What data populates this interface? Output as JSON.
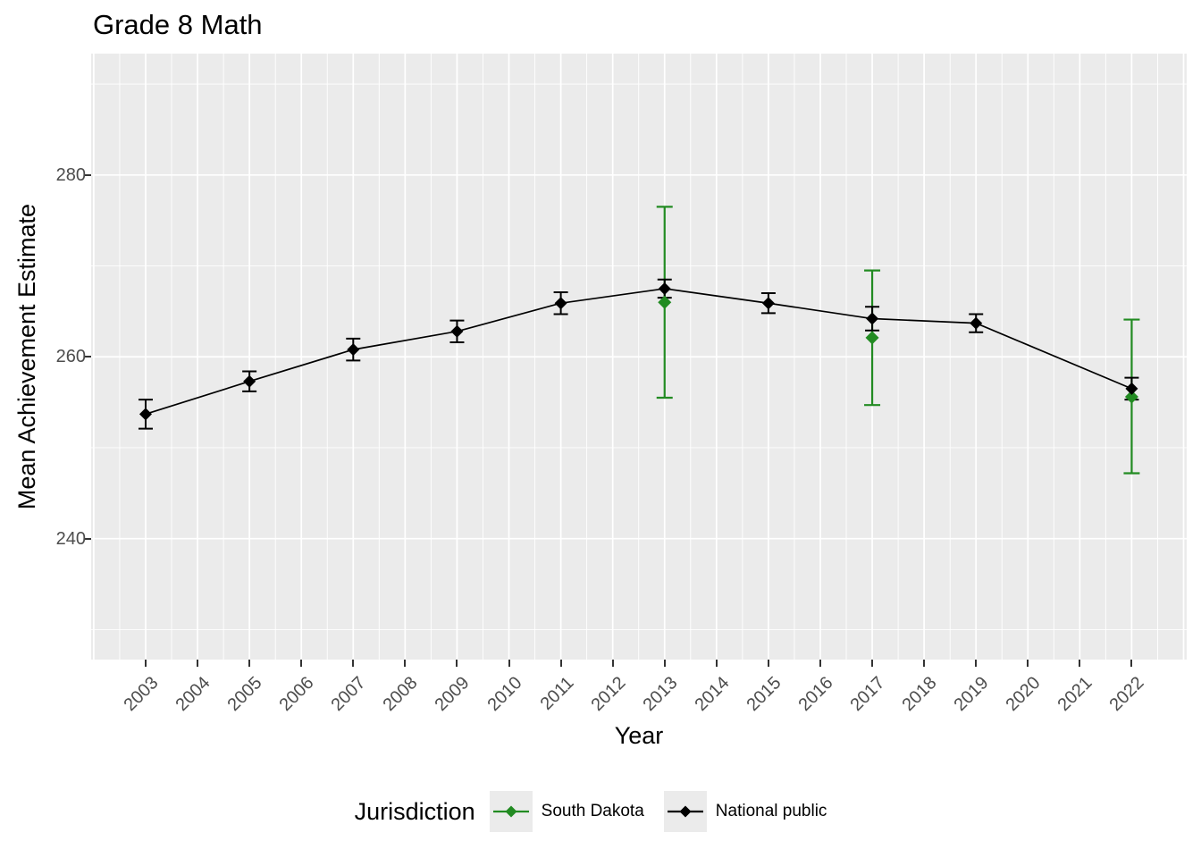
{
  "title": "Grade 8 Math",
  "legend": {
    "title": "Jurisdiction",
    "position": "bottom"
  },
  "axes": {
    "x_label": "Year",
    "y_label": "Mean Achievement Estimate"
  },
  "colors": {
    "panel_background": "#EBEBEB",
    "gridline": "#FFFFFF",
    "tick_mark": "#333333",
    "tick_label": "#4D4D4D",
    "south_dakota_green": "#228B22",
    "national_black": "#000000"
  },
  "chart_data": {
    "type": "line",
    "title": "Grade 8 Math",
    "xlabel": "Year",
    "ylabel": "Mean Achievement Estimate",
    "x_ticks": [
      2003,
      2004,
      2005,
      2006,
      2007,
      2008,
      2009,
      2010,
      2011,
      2012,
      2013,
      2014,
      2015,
      2016,
      2017,
      2018,
      2019,
      2020,
      2021,
      2022
    ],
    "y_ticks": [
      240,
      260,
      280
    ],
    "y_minor_ticks": [
      230,
      250,
      270,
      290
    ],
    "xlim": [
      2001.95,
      2023.06
    ],
    "ylim": [
      226.7,
      293.35
    ],
    "grid": true,
    "legend_position": "bottom",
    "legend_title": "Jurisdiction",
    "series": [
      {
        "name": "South Dakota",
        "color": "#228B22",
        "connected": false,
        "points": [
          {
            "year": 2013,
            "estimate": 266.0,
            "ci_low": 255.5,
            "ci_high": 276.5
          },
          {
            "year": 2017,
            "estimate": 262.1,
            "ci_low": 254.7,
            "ci_high": 269.5
          },
          {
            "year": 2022,
            "estimate": 255.6,
            "ci_low": 247.2,
            "ci_high": 264.1
          }
        ]
      },
      {
        "name": "National public",
        "color": "#000000",
        "connected": true,
        "points": [
          {
            "year": 2003,
            "estimate": 253.7,
            "ci_low": 252.1,
            "ci_high": 255.3
          },
          {
            "year": 2005,
            "estimate": 257.3,
            "ci_low": 256.2,
            "ci_high": 258.4
          },
          {
            "year": 2007,
            "estimate": 260.8,
            "ci_low": 259.6,
            "ci_high": 262.0
          },
          {
            "year": 2009,
            "estimate": 262.8,
            "ci_low": 261.6,
            "ci_high": 264.0
          },
          {
            "year": 2011,
            "estimate": 265.9,
            "ci_low": 264.7,
            "ci_high": 267.1
          },
          {
            "year": 2013,
            "estimate": 267.5,
            "ci_low": 266.5,
            "ci_high": 268.5
          },
          {
            "year": 2015,
            "estimate": 265.9,
            "ci_low": 264.8,
            "ci_high": 267.0
          },
          {
            "year": 2017,
            "estimate": 264.2,
            "ci_low": 262.9,
            "ci_high": 265.5
          },
          {
            "year": 2019,
            "estimate": 263.7,
            "ci_low": 262.7,
            "ci_high": 264.7
          },
          {
            "year": 2022,
            "estimate": 256.5,
            "ci_low": 255.3,
            "ci_high": 257.7
          }
        ]
      }
    ]
  }
}
